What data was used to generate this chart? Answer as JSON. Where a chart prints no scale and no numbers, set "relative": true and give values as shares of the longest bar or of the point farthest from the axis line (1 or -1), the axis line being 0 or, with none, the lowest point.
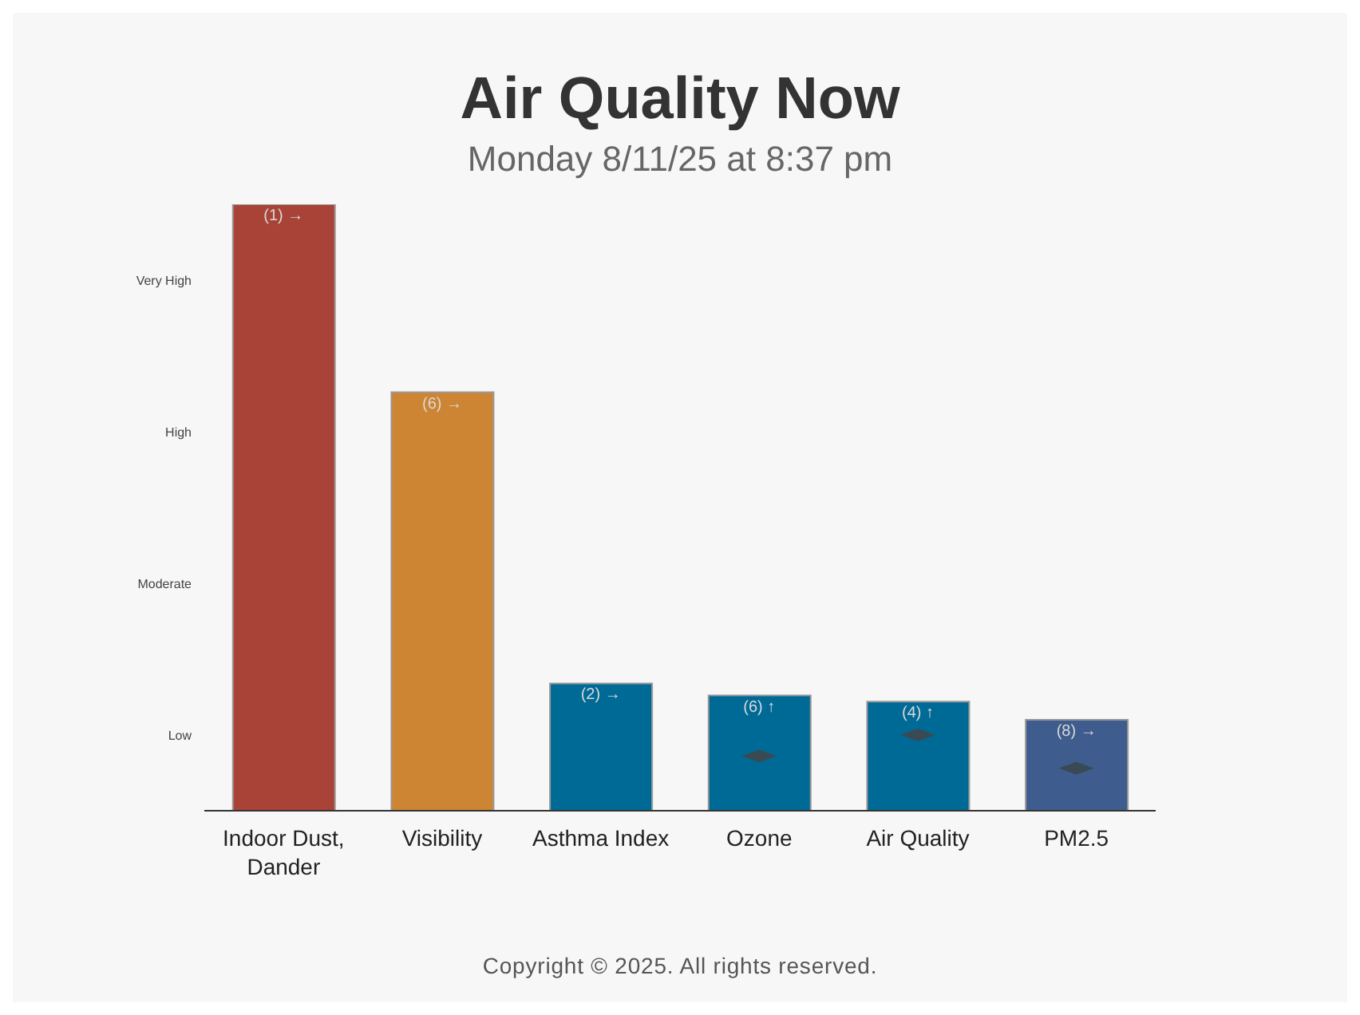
{
  "chart_data": {
    "type": "bar",
    "title": "Air Quality Now",
    "subtitle": "Monday 8/11/25 at 8:37 pm",
    "relative": true,
    "categories": [
      "Indoor Dust, Dander",
      "Visibility",
      "Asthma Index",
      "Ozone",
      "Air Quality",
      "PM2.5"
    ],
    "values": [
      1,
      0.69,
      0.21,
      0.19,
      0.18,
      0.15
    ],
    "colors": [
      "#a94337",
      "#cd8534",
      "#006a96",
      "#006a96",
      "#006a96",
      "#3e5d8e"
    ],
    "series": [
      {
        "type": "scatter",
        "color": "#3a4a55",
        "marker": "diamond",
        "x": [
          "Ozone",
          "Air Quality",
          "PM2.5"
        ],
        "values": [
          0.09,
          0.125,
          0.07
        ]
      }
    ],
    "annotations": [
      {
        "text": "(1) →",
        "x": "Indoor Dust, Dander",
        "y": 1
      },
      {
        "text": "(6) →",
        "x": "Visibility",
        "y": 0.69
      },
      {
        "text": "(2) →",
        "x": "Asthma Index",
        "y": 0.21
      },
      {
        "text": "(6) ↑",
        "x": "Ozone",
        "y": 0.19
      },
      {
        "text": "(4) ↑",
        "x": "Air Quality",
        "y": 0.18
      },
      {
        "text": "(8) →",
        "x": "PM2.5",
        "y": 0.15
      },
      "Low",
      "Moderate",
      "High",
      "Very High",
      "Copyright © 2025. All rights reserved."
    ]
  }
}
